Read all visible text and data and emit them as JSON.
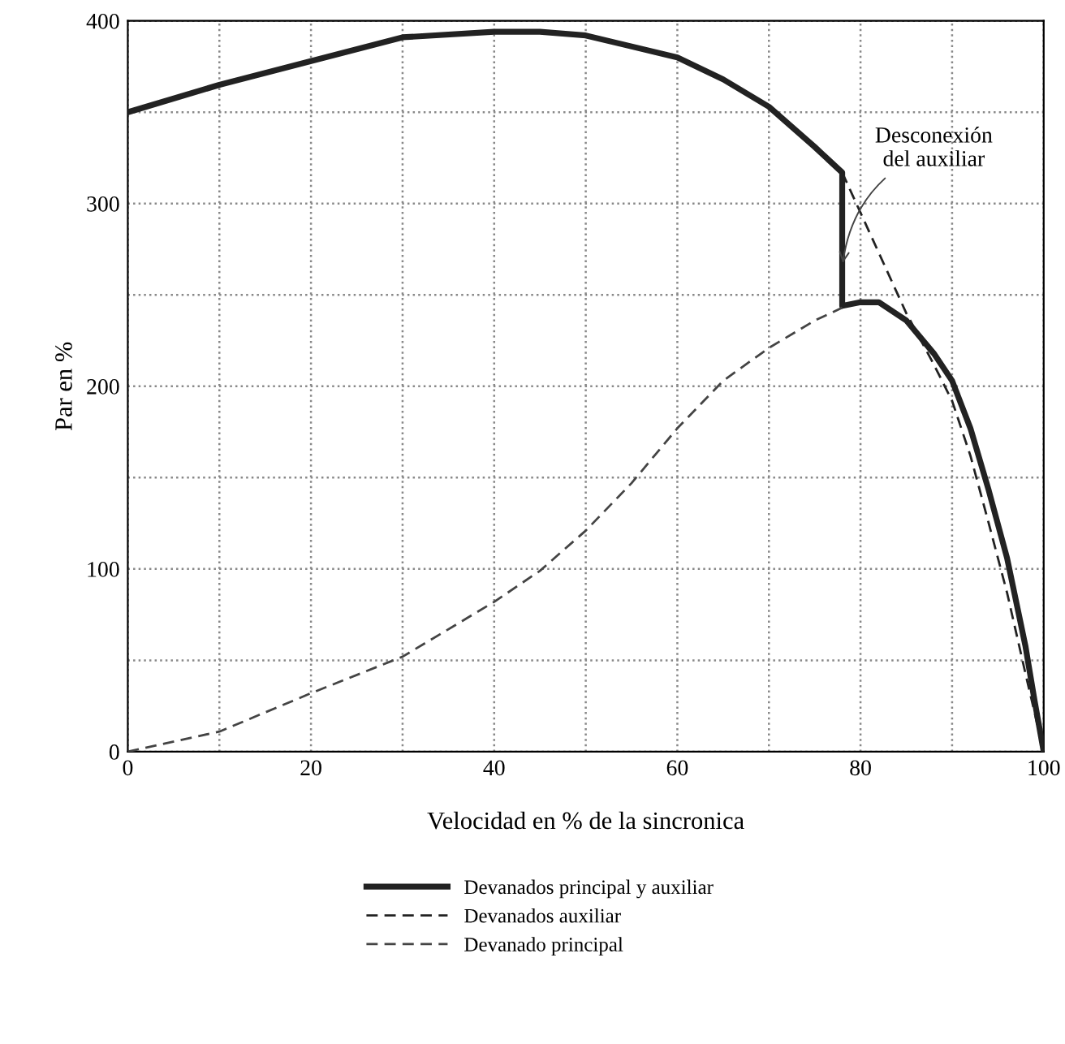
{
  "chart_data": {
    "type": "line",
    "xlabel": "Velocidad en % de la sincronica",
    "ylabel": "Par en %",
    "xlim": [
      0,
      100
    ],
    "ylim": [
      0,
      400
    ],
    "xticks": [
      0,
      {
        "value": 10,
        "label": null
      },
      20,
      {
        "value": 30,
        "label": null
      },
      40,
      {
        "value": 50,
        "label": null
      },
      60,
      {
        "value": 70,
        "label": null
      },
      80,
      {
        "value": 90,
        "label": null
      },
      100
    ],
    "yticks": [
      0,
      {
        "value": 50,
        "label": null
      },
      100,
      {
        "value": 150,
        "label": null
      },
      200,
      {
        "value": 250,
        "label": null
      },
      300,
      {
        "value": 350,
        "label": null
      },
      400
    ],
    "grid": true,
    "legend": "bottom",
    "marker": "none",
    "annotations": [
      {
        "text": "Desconexión\ndel auxiliar",
        "x": 78,
        "y": 265
      }
    ],
    "series": [
      {
        "name": "Devanados principal y auxiliar",
        "color": "#222222",
        "line_style": "solid",
        "x": [
          0,
          10,
          20,
          30,
          40,
          45,
          50,
          60,
          65,
          70,
          75,
          78,
          78,
          80,
          82,
          85,
          88,
          90,
          92,
          94,
          96,
          98,
          99,
          100
        ],
        "values": [
          350,
          365,
          378,
          391,
          394,
          394,
          392,
          380,
          368,
          353,
          331,
          317,
          244,
          246,
          246,
          236,
          218,
          203,
          177,
          143,
          106,
          58,
          28,
          0
        ]
      },
      {
        "name": "Devanados auxiliar",
        "color": "#222222",
        "line_style": "dashed",
        "x": [
          78,
          80,
          82,
          85,
          88,
          90,
          92,
          94,
          96,
          98,
          100
        ],
        "values": [
          317,
          295,
          273,
          240,
          212,
          192,
          162,
          125,
          87,
          43,
          0
        ]
      },
      {
        "name": "Devanado principal",
        "color": "#444444",
        "line_style": "dashed",
        "x": [
          0,
          10,
          20,
          30,
          40,
          45,
          50,
          55,
          60,
          65,
          70,
          75,
          78
        ],
        "values": [
          0,
          11,
          32,
          52,
          82,
          99,
          121,
          147,
          177,
          203,
          221,
          236,
          243
        ]
      }
    ]
  }
}
